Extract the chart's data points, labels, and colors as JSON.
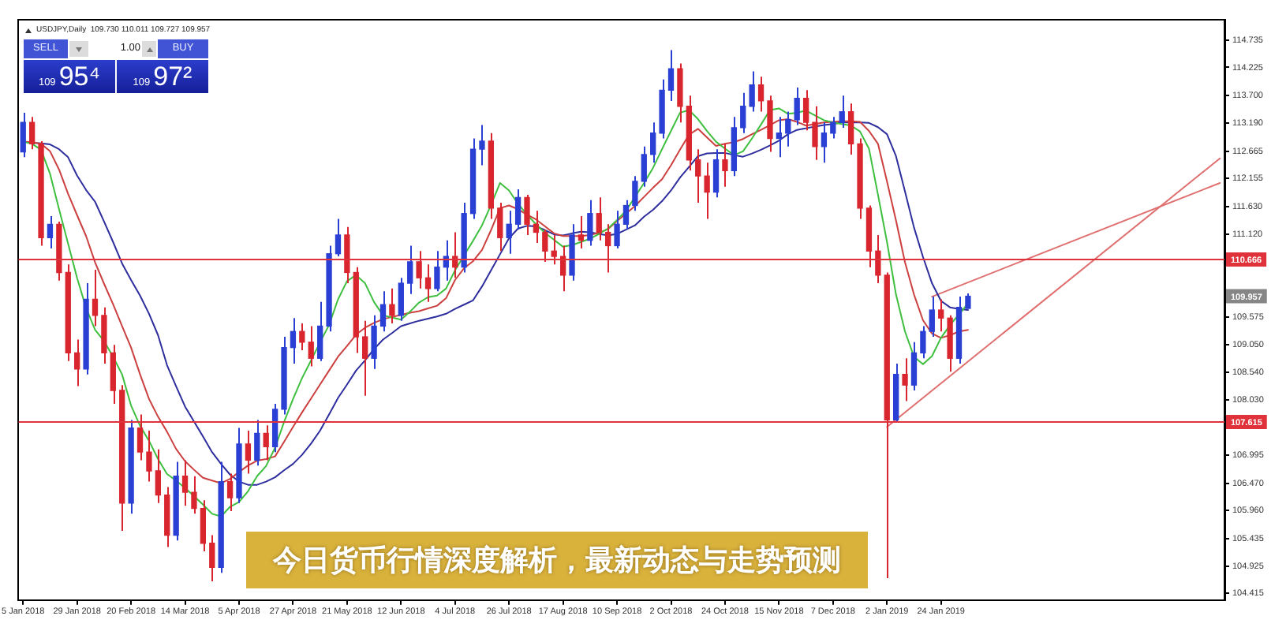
{
  "chart_data": {
    "type": "candlestick",
    "title": "今日货币行情深度解析，最新动态与走势预测",
    "subtitle": "USDJPY,Daily  109.730 110.011 109.727 109.957",
    "categories": [
      "5 Jan 2018",
      null,
      null,
      null,
      null,
      null,
      "29 Jan 2018",
      null,
      null,
      null,
      null,
      null,
      "20 Feb 2018",
      null,
      null,
      null,
      null,
      null,
      "14 Mar 2018",
      null,
      null,
      null,
      null,
      null,
      "5 Apr 2018",
      null,
      null,
      null,
      null,
      null,
      "27 Apr 2018",
      null,
      null,
      null,
      null,
      null,
      "21 May 2018",
      null,
      null,
      null,
      null,
      null,
      "12 Jun 2018",
      null,
      null,
      null,
      null,
      null,
      "4 Jul 2018",
      null,
      null,
      null,
      null,
      null,
      "26 Jul 2018",
      null,
      null,
      null,
      null,
      null,
      "17 Aug 2018",
      null,
      null,
      null,
      null,
      null,
      "10 Sep 2018",
      null,
      null,
      null,
      null,
      null,
      "2 Oct 2018",
      null,
      null,
      null,
      null,
      null,
      "24 Oct 2018",
      null,
      null,
      null,
      null,
      null,
      "15 Nov 2018",
      null,
      null,
      null,
      null,
      null,
      "7 Dec 2018",
      null,
      null,
      null,
      null,
      null,
      "2 Jan 2019",
      null,
      null,
      null,
      null,
      null,
      "24 Jan 2019",
      null,
      null,
      null,
      null,
      null,
      null,
      null,
      null,
      null,
      null,
      null,
      null,
      null,
      null,
      null,
      null,
      null,
      null,
      null,
      null,
      null,
      null,
      null,
      null,
      null,
      null,
      null,
      null,
      null,
      null,
      null
    ],
    "ohlc": [
      [
        112.65,
        113.38,
        112.55,
        113.2
      ],
      [
        113.2,
        113.3,
        112.7,
        112.8
      ],
      [
        112.8,
        112.85,
        110.9,
        111.05
      ],
      [
        111.05,
        111.45,
        110.85,
        111.3
      ],
      [
        111.3,
        111.35,
        110.25,
        110.4
      ],
      [
        110.4,
        110.55,
        108.75,
        108.9
      ],
      [
        108.9,
        109.15,
        108.28,
        108.6
      ],
      [
        108.6,
        110.2,
        108.5,
        109.9
      ],
      [
        109.9,
        110.45,
        109.4,
        109.6
      ],
      [
        109.6,
        109.75,
        108.7,
        108.9
      ],
      [
        108.9,
        109.05,
        107.95,
        108.2
      ],
      [
        108.2,
        108.3,
        105.58,
        106.1
      ],
      [
        106.1,
        107.65,
        105.9,
        107.5
      ],
      [
        107.5,
        107.75,
        106.9,
        107.05
      ],
      [
        107.05,
        107.45,
        106.5,
        106.7
      ],
      [
        106.7,
        107.1,
        106.1,
        106.25
      ],
      [
        106.25,
        106.4,
        105.28,
        105.5
      ],
      [
        105.5,
        106.87,
        105.4,
        106.6
      ],
      [
        106.6,
        106.9,
        106.05,
        106.3
      ],
      [
        106.3,
        106.6,
        105.9,
        106
      ],
      [
        106,
        106.15,
        105.2,
        105.35
      ],
      [
        105.35,
        105.5,
        104.64,
        104.9
      ],
      [
        104.9,
        106.87,
        104.8,
        106.5
      ],
      [
        106.5,
        106.65,
        105.95,
        106.2
      ],
      [
        106.2,
        107.5,
        106.1,
        107.2
      ],
      [
        107.2,
        107.45,
        106.65,
        106.9
      ],
      [
        106.9,
        107.65,
        106.8,
        107.4
      ],
      [
        107.4,
        107.55,
        106.9,
        107.15
      ],
      [
        107.15,
        107.95,
        107.05,
        107.85
      ],
      [
        107.85,
        109.2,
        107.75,
        109
      ],
      [
        109,
        109.55,
        108.7,
        109.3
      ],
      [
        109.3,
        109.45,
        108.95,
        109.1
      ],
      [
        109.1,
        109.4,
        108.65,
        108.8
      ],
      [
        108.8,
        109.85,
        108.75,
        109.4
      ],
      [
        109.4,
        110.9,
        109.3,
        110.75
      ],
      [
        110.75,
        111.4,
        110.7,
        111.1
      ],
      [
        111.1,
        111.25,
        110.2,
        110.4
      ],
      [
        110.4,
        110.5,
        108.9,
        109.2
      ],
      [
        109.2,
        109.5,
        108.1,
        108.8
      ],
      [
        108.8,
        109.6,
        108.6,
        109.4
      ],
      [
        109.4,
        110.05,
        109.3,
        109.8
      ],
      [
        109.8,
        110.1,
        109.45,
        109.6
      ],
      [
        109.6,
        110.3,
        109.5,
        110.2
      ],
      [
        110.2,
        110.9,
        110,
        110.6
      ],
      [
        110.6,
        110.8,
        110.1,
        110.3
      ],
      [
        110.3,
        110.55,
        109.85,
        110.1
      ],
      [
        110.1,
        110.8,
        110.05,
        110.5
      ],
      [
        110.5,
        111,
        110.25,
        110.7
      ],
      [
        110.7,
        111.15,
        110.3,
        110.5
      ],
      [
        110.5,
        111.7,
        110.4,
        111.5
      ],
      [
        111.5,
        112.9,
        111.4,
        112.7
      ],
      [
        112.7,
        113.15,
        112.4,
        112.85
      ],
      [
        112.85,
        113,
        111.4,
        111.6
      ],
      [
        111.6,
        111.7,
        110.8,
        111.05
      ],
      [
        111.05,
        111.55,
        110.75,
        111.3
      ],
      [
        111.3,
        111.95,
        111.2,
        111.8
      ],
      [
        111.8,
        111.85,
        111.1,
        111.3
      ],
      [
        111.3,
        111.55,
        110.95,
        111.15
      ],
      [
        111.15,
        111.2,
        110.6,
        110.8
      ],
      [
        110.8,
        111.1,
        110.55,
        110.7
      ],
      [
        110.7,
        110.9,
        110.05,
        110.35
      ],
      [
        110.35,
        111.3,
        110.25,
        111.1
      ],
      [
        111.1,
        111.45,
        110.85,
        111
      ],
      [
        111,
        111.75,
        110.9,
        111.5
      ],
      [
        111.5,
        111.8,
        111,
        111.15
      ],
      [
        111.15,
        111.3,
        110.4,
        110.9
      ],
      [
        110.9,
        111.55,
        110.85,
        111.3
      ],
      [
        111.3,
        111.75,
        111.2,
        111.65
      ],
      [
        111.65,
        112.2,
        111.55,
        112.1
      ],
      [
        112.1,
        112.75,
        112,
        112.6
      ],
      [
        112.6,
        113.2,
        112.45,
        113
      ],
      [
        113,
        114,
        112.9,
        113.8
      ],
      [
        113.8,
        114.55,
        113.6,
        114.2
      ],
      [
        114.2,
        114.3,
        113.2,
        113.5
      ],
      [
        113.5,
        113.7,
        112.3,
        112.5
      ],
      [
        112.5,
        112.7,
        111.7,
        112.2
      ],
      [
        112.2,
        112.45,
        111.4,
        111.9
      ],
      [
        111.9,
        112.7,
        111.8,
        112.5
      ],
      [
        112.5,
        112.8,
        112,
        112.3
      ],
      [
        112.3,
        113.3,
        112.2,
        113.1
      ],
      [
        113.1,
        113.75,
        113,
        113.5
      ],
      [
        113.5,
        114.15,
        113.4,
        113.9
      ],
      [
        113.9,
        114.05,
        113.4,
        113.6
      ],
      [
        113.6,
        113.7,
        112.65,
        112.9
      ],
      [
        112.9,
        113.3,
        112.55,
        113
      ],
      [
        113,
        113.4,
        112.75,
        113.25
      ],
      [
        113.25,
        113.85,
        113.15,
        113.65
      ],
      [
        113.65,
        113.8,
        113.05,
        113.2
      ],
      [
        113.2,
        113.5,
        112.5,
        112.75
      ],
      [
        112.75,
        113.2,
        112.45,
        113
      ],
      [
        113,
        113.3,
        112.9,
        113.2
      ],
      [
        113.2,
        113.7,
        113.1,
        113.4
      ],
      [
        113.4,
        113.55,
        112.6,
        112.8
      ],
      [
        112.8,
        112.9,
        111.4,
        111.6
      ],
      [
        111.6,
        111.65,
        110.5,
        110.8
      ],
      [
        110.8,
        111.1,
        110.2,
        110.35
      ],
      [
        110.35,
        110.4,
        104.7,
        107.65
      ],
      [
        107.65,
        108.7,
        107.6,
        108.5
      ],
      [
        108.5,
        108.8,
        108,
        108.3
      ],
      [
        108.3,
        109.1,
        108.2,
        108.9
      ],
      [
        108.9,
        109.4,
        108.8,
        109.3
      ],
      [
        109.3,
        109.95,
        109.2,
        109.7
      ],
      [
        109.7,
        109.9,
        109.3,
        109.55
      ],
      [
        109.55,
        109.6,
        108.55,
        108.8
      ],
      [
        108.8,
        109.95,
        108.7,
        109.75
      ],
      [
        109.73,
        110.011,
        109.727,
        109.957
      ],
      null,
      null,
      null,
      null,
      null,
      null,
      null,
      null,
      null,
      null,
      null,
      null,
      null,
      null,
      null,
      null,
      null,
      null,
      null,
      null,
      null,
      null,
      null,
      null,
      null,
      null,
      null,
      null
    ],
    "colors": [
      "#2a3fd4",
      "#d9262e",
      "#d9262e",
      "#2a3fd4",
      "#d9262e",
      "#d9262e",
      "#d9262e",
      "#2a3fd4",
      "#d9262e",
      "#d9262e",
      "#d9262e",
      "#d9262e",
      "#2a3fd4",
      "#d9262e",
      "#d9262e",
      "#d9262e",
      "#d9262e",
      "#2a3fd4",
      "#d9262e",
      "#d9262e",
      "#d9262e",
      "#d9262e",
      "#2a3fd4",
      "#d9262e",
      "#2a3fd4",
      "#d9262e",
      "#2a3fd4",
      "#d9262e",
      "#2a3fd4",
      "#2a3fd4",
      "#2a3fd4",
      "#d9262e",
      "#d9262e",
      "#2a3fd4",
      "#2a3fd4",
      "#2a3fd4",
      "#d9262e",
      "#d9262e",
      "#d9262e",
      "#2a3fd4",
      "#2a3fd4",
      "#d9262e",
      "#2a3fd4",
      "#2a3fd4",
      "#d9262e",
      "#d9262e",
      "#2a3fd4",
      "#2a3fd4",
      "#d9262e",
      "#2a3fd4",
      "#2a3fd4",
      "#2a3fd4",
      "#d9262e",
      "#d9262e",
      "#2a3fd4",
      "#2a3fd4",
      "#d9262e",
      "#d9262e",
      "#d9262e",
      "#d9262e",
      "#d9262e",
      "#2a3fd4",
      "#d9262e",
      "#2a3fd4",
      "#d9262e",
      "#d9262e",
      "#2a3fd4",
      "#2a3fd4",
      "#2a3fd4",
      "#2a3fd4",
      "#2a3fd4",
      "#2a3fd4",
      "#2a3fd4",
      "#d9262e",
      "#d9262e",
      "#d9262e",
      "#d9262e",
      "#2a3fd4",
      "#d9262e",
      "#2a3fd4",
      "#2a3fd4",
      "#2a3fd4",
      "#d9262e",
      "#d9262e",
      "#2a3fd4",
      "#2a3fd4",
      "#2a3fd4",
      "#d9262e",
      "#d9262e",
      "#2a3fd4",
      "#2a3fd4",
      "#2a3fd4",
      "#d9262e",
      "#d9262e",
      "#d9262e",
      "#d9262e",
      "#d9262e",
      "#2a3fd4",
      "#d9262e",
      "#2a3fd4",
      "#2a3fd4",
      "#2a3fd4",
      "#d9262e",
      "#d9262e",
      "#2a3fd4",
      "#2a3fd4",
      null,
      null,
      null,
      null,
      null,
      null,
      null,
      null,
      null,
      null,
      null,
      null,
      null,
      null,
      null,
      null,
      null,
      null,
      null,
      null,
      null,
      null,
      null,
      null,
      null,
      null,
      null,
      null
    ],
    "series": [
      {
        "type": "line",
        "color": "#3fbf3f",
        "values": [
          112.84,
          112.8,
          112.69,
          112.24,
          111.58,
          110.94,
          110.3,
          109.74,
          109.33,
          109.12,
          108.83,
          108.5,
          107.92,
          107.54,
          107.26,
          106.92,
          106.64,
          106.52,
          106.38,
          106.23,
          106.07,
          105.9,
          105.85,
          106.03,
          106.12,
          106.32,
          106.6,
          106.79,
          107.13,
          107.61,
          108.04,
          108.43,
          108.76,
          109.1,
          109.42,
          109.9,
          110.24,
          110.35,
          110.2,
          109.85,
          109.6,
          109.56,
          109.52,
          109.67,
          109.84,
          109.94,
          109.97,
          110.1,
          110.44,
          110.72,
          110.99,
          111.28,
          111.66,
          112.07,
          111.93,
          111.68,
          111.48,
          111.3,
          111.14,
          111.01,
          110.88,
          110.91,
          110.97,
          111.03,
          111.12,
          111.22,
          111.38,
          111.55,
          111.81,
          112.07,
          112.35,
          112.7,
          113.04,
          113.38,
          113.43,
          113.26,
          113.04,
          112.84,
          112.71,
          112.59,
          112.66,
          112.9,
          113.16,
          113.43,
          113.46,
          113.36,
          113.38,
          113.42,
          113.33,
          113.24,
          113.2,
          113.17,
          113.14,
          113.03,
          112.71,
          111.85,
          110.97,
          109.99,
          109.3,
          108.83,
          108.69,
          108.84,
          109.18,
          109.42,
          109.62,
          109.82,
          null,
          null,
          null,
          null,
          null,
          null,
          null,
          null,
          null,
          null,
          null,
          null,
          null,
          null,
          null,
          null,
          null,
          null,
          null,
          null,
          null,
          null,
          null,
          null,
          null,
          null,
          null,
          null
        ]
      },
      {
        "type": "line",
        "color": "#cc4040",
        "values": [
          112.84,
          112.83,
          112.8,
          112.66,
          112.32,
          111.87,
          111.47,
          111.08,
          110.59,
          110.19,
          109.81,
          109.4,
          109,
          108.5,
          108.04,
          107.71,
          107.43,
          107.11,
          106.88,
          106.72,
          106.57,
          106.52,
          106.47,
          106.55,
          106.68,
          106.8,
          106.89,
          106.92,
          106.97,
          107.24,
          107.52,
          107.79,
          108.05,
          108.31,
          108.57,
          108.83,
          109.03,
          109.24,
          109.37,
          109.46,
          109.53,
          109.57,
          109.61,
          109.65,
          109.68,
          109.73,
          109.78,
          109.92,
          110.26,
          110.48,
          110.61,
          110.82,
          111.19,
          111.6,
          111.65,
          111.58,
          111.48,
          111.39,
          111.26,
          111.13,
          111.08,
          111.08,
          111.08,
          111.1,
          111.14,
          111.21,
          111.36,
          111.5,
          111.64,
          111.81,
          111.98,
          112.14,
          112.4,
          112.69,
          112.97,
          113.08,
          112.92,
          112.76,
          112.8,
          112.83,
          112.89,
          112.98,
          113.06,
          113.15,
          113.24,
          113.26,
          113.21,
          113.14,
          113.17,
          113.2,
          113.21,
          113.22,
          113.22,
          113.21,
          113.04,
          112.8,
          112.1,
          111.37,
          110.59,
          109.99,
          109.51,
          109.26,
          109.18,
          109.23,
          109.3,
          109.33,
          null,
          null,
          null,
          null,
          null,
          null,
          null,
          null,
          null,
          null,
          null,
          null,
          null,
          null,
          null,
          null,
          null,
          null,
          null,
          null,
          null,
          null,
          null,
          null,
          null,
          null,
          null,
          null
        ]
      },
      {
        "type": "line",
        "color": "#2e2e9e",
        "values": [
          112.84,
          112.82,
          112.81,
          112.79,
          112.7,
          112.55,
          112.21,
          111.94,
          111.72,
          111.35,
          110.97,
          110.57,
          110.26,
          109.97,
          109.63,
          109.23,
          108.67,
          108.28,
          107.9,
          107.62,
          107.34,
          107.05,
          106.83,
          106.63,
          106.5,
          106.44,
          106.44,
          106.5,
          106.58,
          106.71,
          106.83,
          107,
          107.21,
          107.45,
          107.75,
          108.06,
          108.31,
          108.57,
          108.76,
          108.97,
          109.15,
          109.27,
          109.4,
          109.45,
          109.5,
          109.54,
          109.58,
          109.63,
          109.72,
          109.8,
          109.88,
          110.14,
          110.44,
          110.74,
          111.04,
          111.22,
          111.27,
          111.26,
          111.19,
          111.11,
          111.09,
          111.13,
          111.16,
          111.15,
          111.12,
          111.09,
          111.12,
          111.2,
          111.28,
          111.44,
          111.57,
          111.73,
          111.93,
          112.17,
          112.37,
          112.57,
          112.62,
          112.63,
          112.63,
          112.59,
          112.56,
          112.62,
          112.69,
          112.77,
          112.86,
          112.98,
          113.06,
          113.09,
          113.12,
          113.15,
          113.17,
          113.2,
          113.2,
          113.2,
          113.19,
          113.11,
          112.98,
          112.57,
          111.91,
          111.24,
          110.69,
          110.2,
          109.87,
          109.75,
          109.72,
          109.7,
          null,
          null,
          null,
          null,
          null,
          null,
          null,
          null,
          null,
          null,
          null,
          null,
          null,
          null,
          null,
          null,
          null,
          null,
          null,
          null,
          null,
          null,
          null,
          null,
          null,
          null,
          null,
          null
        ]
      },
      {
        "type": "line",
        "color": "#e07070",
        "values": [
          null,
          null,
          null,
          null,
          null,
          null,
          null,
          null,
          null,
          null,
          null,
          null,
          null,
          null,
          null,
          null,
          null,
          null,
          null,
          null,
          null,
          null,
          null,
          null,
          null,
          null,
          null,
          null,
          null,
          null,
          null,
          null,
          null,
          null,
          null,
          null,
          null,
          null,
          null,
          null,
          null,
          null,
          null,
          null,
          null,
          null,
          null,
          null,
          null,
          null,
          null,
          null,
          null,
          null,
          null,
          null,
          null,
          null,
          null,
          null,
          null,
          null,
          null,
          null,
          null,
          null,
          null,
          null,
          null,
          null,
          null,
          null,
          null,
          null,
          null,
          null,
          null,
          null,
          null,
          null,
          null,
          null,
          null,
          null,
          null,
          null,
          null,
          null,
          null,
          null,
          null,
          null,
          null,
          null,
          null,
          null,
          107.52,
          null,
          null,
          null,
          null,
          null,
          null,
          null,
          null,
          null,
          null,
          null,
          null,
          null,
          null,
          null,
          null,
          null,
          null,
          null,
          null,
          null,
          null,
          null,
          null,
          null,
          null,
          null,
          null,
          null,
          null,
          null,
          null,
          null,
          null,
          null,
          null,
          112.53
        ]
      },
      {
        "type": "line",
        "color": "#e07070",
        "values": [
          null,
          null,
          null,
          null,
          null,
          null,
          null,
          null,
          null,
          null,
          null,
          null,
          null,
          null,
          null,
          null,
          null,
          null,
          null,
          null,
          null,
          null,
          null,
          null,
          null,
          null,
          null,
          null,
          null,
          null,
          null,
          null,
          null,
          null,
          null,
          null,
          null,
          null,
          null,
          null,
          null,
          null,
          null,
          null,
          null,
          null,
          null,
          null,
          null,
          null,
          null,
          null,
          null,
          null,
          null,
          null,
          null,
          null,
          null,
          null,
          null,
          null,
          null,
          null,
          null,
          null,
          null,
          null,
          null,
          null,
          null,
          null,
          null,
          null,
          null,
          null,
          null,
          null,
          null,
          null,
          null,
          null,
          null,
          null,
          null,
          null,
          null,
          null,
          null,
          null,
          null,
          null,
          null,
          null,
          null,
          null,
          null,
          null,
          null,
          null,
          null,
          109.95,
          null,
          null,
          null,
          null,
          null,
          null,
          null,
          null,
          null,
          null,
          null,
          null,
          null,
          null,
          null,
          null,
          null,
          null,
          null,
          null,
          null,
          null,
          null,
          null,
          null,
          null,
          null,
          null,
          null,
          null,
          null,
          112.07
        ]
      }
    ],
    "marker": "none",
    "ylim": [
      104.29,
      115.1
    ],
    "yticks": [
      114.735,
      114.225,
      {
        "value": 113.7,
        "label": "113.700"
      },
      {
        "value": 113.19,
        "label": "113.190"
      },
      112.665,
      112.155,
      {
        "value": 111.63,
        "label": "111.630"
      },
      {
        "value": 111.12,
        "label": "111.120"
      },
      109.575,
      {
        "value": 109.05,
        "label": "109.050"
      },
      {
        "value": 108.54,
        "label": "108.540"
      },
      {
        "value": 108.03,
        "label": "108.030"
      },
      106.995,
      {
        "value": 106.47,
        "label": "106.470"
      },
      {
        "value": 105.96,
        "label": "105.960"
      },
      105.435,
      104.925,
      104.415
    ],
    "ref_lines": [
      {
        "axis": "y",
        "value": 110.666,
        "label": "110.666",
        "color": "#e0323a"
      },
      {
        "axis": "y",
        "value": 107.615,
        "label": "107.615",
        "color": "#e0323a"
      }
    ],
    "annotations": [
      "SELL",
      "1.00",
      "BUY",
      "109",
      "95⁴",
      "109",
      "97²",
      {
        "text": "109.957",
        "y": 109.957
      }
    ]
  }
}
